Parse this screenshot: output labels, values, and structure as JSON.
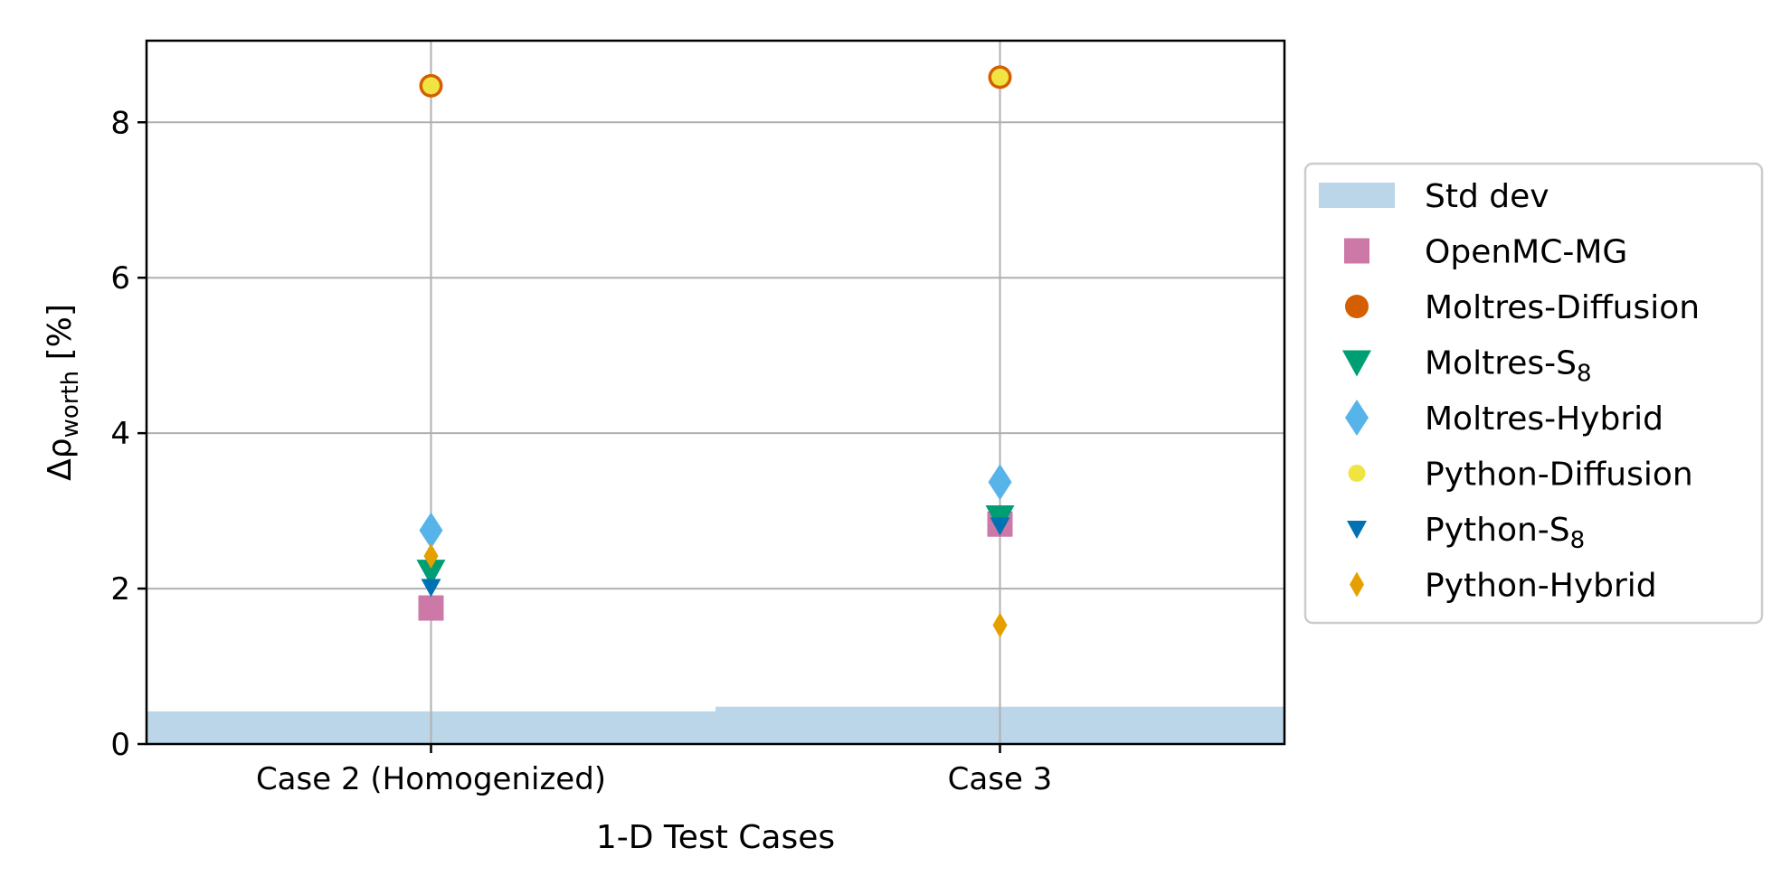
{
  "chart_data": {
    "type": "scatter",
    "xlabel": "1-D Test Cases",
    "ylabel": {
      "prefix": "Δρ",
      "subscript": "worth",
      "suffix": " [%]"
    },
    "categories": [
      "Case 2 (Homogenized)",
      "Case 3"
    ],
    "ylim": [
      0,
      9.05
    ],
    "yticks": [
      "0",
      "2",
      "4",
      "6",
      "8"
    ],
    "grid": true,
    "legend_position": "right",
    "std_dev": {
      "name": "Std dev",
      "values": [
        0.42,
        0.48
      ],
      "color": "#bad6e8"
    },
    "series": [
      {
        "name": "OpenMC-MG",
        "base": "OpenMC-MG",
        "sub": "",
        "marker": "square",
        "color": "#cc79a7",
        "values": [
          1.75,
          2.83
        ]
      },
      {
        "name": "Moltres-Diffusion",
        "base": "Moltres-Diffusion",
        "sub": "",
        "marker": "circle",
        "color": "#d55e00",
        "values": [
          8.47,
          8.58
        ]
      },
      {
        "name": "Moltres-S8",
        "base": "Moltres-S",
        "sub": "8",
        "marker": "triangle-down",
        "color": "#009e73",
        "values": [
          2.22,
          2.92
        ]
      },
      {
        "name": "Moltres-Hybrid",
        "base": "Moltres-Hybrid",
        "sub": "",
        "marker": "diamond",
        "color": "#56b4e9",
        "values": [
          2.75,
          3.37
        ]
      },
      {
        "name": "Python-Diffusion",
        "base": "Python-Diffusion",
        "sub": "",
        "marker": "circle-small",
        "color": "#f0e442",
        "values": [
          8.47,
          8.58
        ]
      },
      {
        "name": "Python-S8",
        "base": "Python-S",
        "sub": "8",
        "marker": "triangle-down-small",
        "color": "#0072b2",
        "values": [
          2.02,
          2.81
        ]
      },
      {
        "name": "Python-Hybrid",
        "base": "Python-Hybrid",
        "sub": "",
        "marker": "diamond-thin",
        "color": "#e69f00",
        "values": [
          2.42,
          1.53
        ]
      }
    ]
  }
}
